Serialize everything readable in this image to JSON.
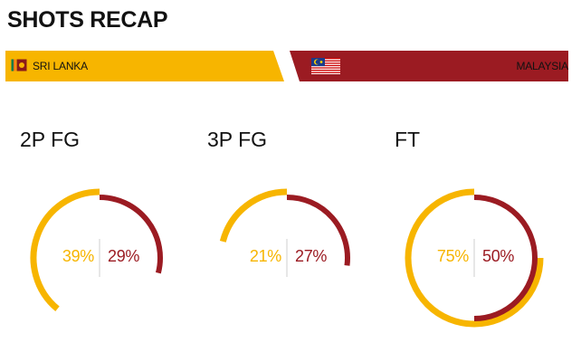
{
  "header": {
    "title": "SHOTS RECAP"
  },
  "teams": {
    "left": {
      "name": "SRI LANKA",
      "flag_icon": "sri-lanka-flag-icon",
      "color": "#f7b500"
    },
    "right": {
      "name": "MALAYSIA",
      "flag_icon": "malaysia-flag-icon",
      "color": "#9b1b22"
    }
  },
  "colors": {
    "left_bar": "#f7b500",
    "right_bar": "#9b1b22"
  },
  "stats": [
    {
      "label": "2P FG",
      "left_value": 39,
      "right_value": 29,
      "left_text": "39%",
      "right_text": "29%"
    },
    {
      "label": "3P FG",
      "left_value": 21,
      "right_value": 27,
      "left_text": "21%",
      "right_text": "27%"
    },
    {
      "label": "FT",
      "left_value": 75,
      "right_value": 50,
      "left_text": "75%",
      "right_text": "50%"
    }
  ]
}
